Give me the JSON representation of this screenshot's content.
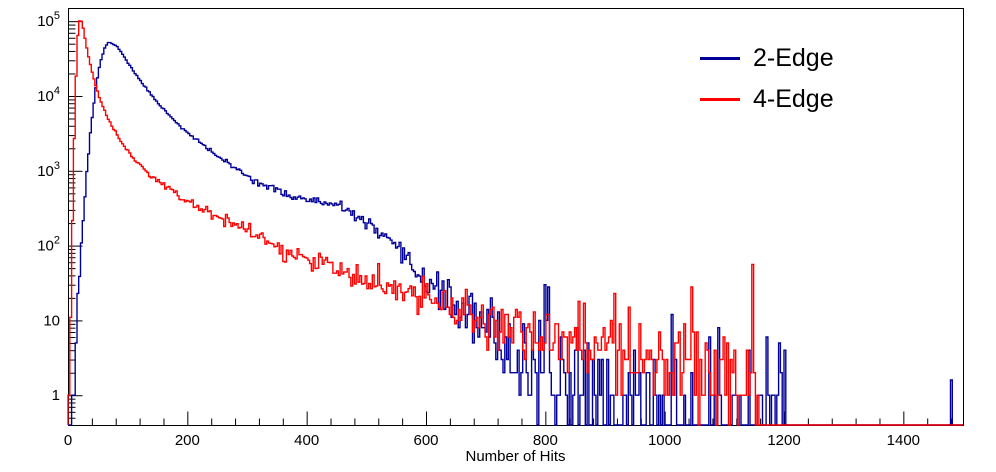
{
  "chart_data": {
    "type": "line",
    "title": "",
    "xlabel": "Number of Hits",
    "ylabel": "",
    "xscale": "linear",
    "yscale": "log",
    "xlim": [
      0,
      1500
    ],
    "ylim": [
      0.4,
      150000
    ],
    "x_ticks_labeled": [
      0,
      200,
      400,
      600,
      800,
      1000,
      1200,
      1400
    ],
    "x_major_step": 200,
    "x_minor_step": 40,
    "y_ticks_labeled": [
      1,
      10,
      100,
      1000,
      10000,
      100000
    ],
    "grid": false,
    "legend_position": "top-right",
    "bin_width": 3,
    "axis_color": "#000000",
    "background": "#ffffff",
    "series": [
      {
        "name": "2-Edge",
        "color": "#000099",
        "seed": 11,
        "x": [
          0,
          8,
          15,
          22,
          30,
          38,
          46,
          54,
          62,
          68,
          75,
          82,
          90,
          100,
          110,
          120,
          135,
          150,
          165,
          180,
          200,
          215,
          230,
          245,
          260,
          275,
          290,
          305,
          320,
          335,
          350,
          365,
          380,
          395,
          410,
          425,
          440,
          455,
          470,
          485,
          500,
          515,
          530,
          545,
          560,
          575,
          590,
          605,
          620,
          635,
          650,
          665,
          680,
          695,
          710,
          725,
          740,
          755,
          770,
          790,
          815,
          845,
          880,
          920,
          970,
          1030,
          1090,
          1140,
          1170,
          1190,
          1205,
          1215
        ],
        "y": [
          0.3,
          2,
          12,
          90,
          700,
          3500,
          12000,
          28000,
          45000,
          52000,
          50000,
          46000,
          38000,
          28000,
          21500,
          16500,
          11500,
          8200,
          6100,
          4600,
          3200,
          2600,
          2100,
          1700,
          1400,
          1150,
          960,
          820,
          700,
          610,
          540,
          490,
          450,
          420,
          395,
          375,
          350,
          330,
          290,
          245,
          200,
          160,
          125,
          95,
          72,
          55,
          42,
          32,
          25,
          19,
          15,
          12,
          9.5,
          7.5,
          6,
          4.8,
          3.9,
          3.2,
          2.6,
          2.0,
          1.5,
          1.0,
          0.7,
          0.5,
          0.38,
          0.3,
          0.26,
          0.24,
          0.3,
          0.18,
          0.12,
          0.01
        ],
        "extra_bins": [
          {
            "x": 1481,
            "y": 1.6
          }
        ]
      },
      {
        "name": "4-Edge",
        "color": "#ff0000",
        "seed": 97,
        "x": [
          0,
          4,
          8,
          12,
          16,
          20,
          24,
          28,
          33,
          39,
          46,
          54,
          62,
          72,
          82,
          92,
          102,
          115,
          130,
          145,
          160,
          175,
          190,
          205,
          220,
          240,
          260,
          280,
          300,
          320,
          345,
          370,
          395,
          420,
          445,
          470,
          495,
          520,
          545,
          570,
          600,
          630,
          660,
          690,
          720,
          750,
          780,
          810,
          845,
          880,
          915,
          950,
          985,
          1020,
          1055,
          1090,
          1120,
          1145,
          1158,
          1166
        ],
        "y": [
          0.3,
          8,
          400,
          9000,
          60000,
          108000,
          95000,
          62000,
          38000,
          23000,
          14000,
          9000,
          6200,
          4200,
          3000,
          2250,
          1750,
          1300,
          980,
          780,
          640,
          530,
          445,
          380,
          325,
          270,
          225,
          190,
          160,
          135,
          95,
          80,
          67,
          57,
          48,
          41,
          35,
          30,
          25.5,
          22,
          18.5,
          15.5,
          13,
          11,
          9.4,
          8,
          7,
          6.1,
          5.2,
          4.5,
          3.9,
          3.4,
          3.0,
          2.6,
          2.25,
          1.95,
          1.65,
          1.35,
          0.8,
          0.01
        ],
        "extra_bins": []
      }
    ]
  }
}
